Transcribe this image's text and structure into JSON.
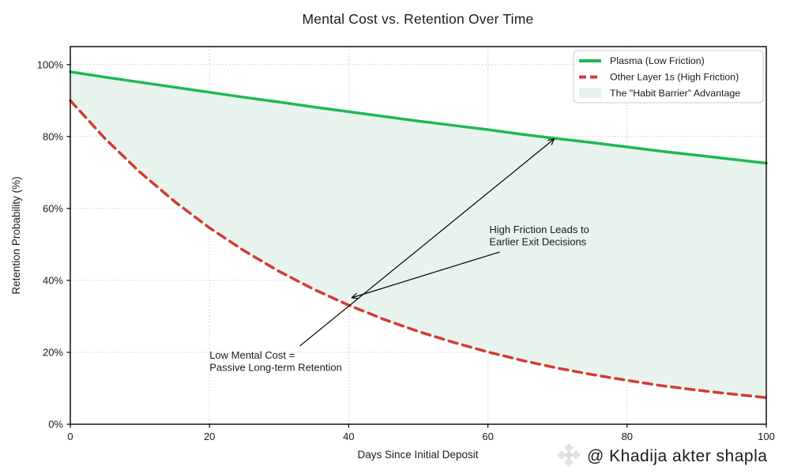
{
  "title": "Mental Cost vs. Retention Over Time",
  "watermark": {
    "icon": "bnb-diamond-icon",
    "text": "@ Khadija akter shapla",
    "color": "#d6d6d6"
  },
  "legend": {
    "position": "upper right",
    "items": [
      {
        "label": "Plasma (Low Friction)",
        "swatch": "solid-line",
        "color": "#1db954"
      },
      {
        "label": "Other Layer 1s (High Friction)",
        "swatch": "dashed-line",
        "color": "#d23b34"
      },
      {
        "label": "The \"Habit Barrier\" Advantage",
        "swatch": "patch",
        "color": "#e9f3ed"
      }
    ]
  },
  "chart_data": {
    "type": "line",
    "title": "Mental Cost vs. Retention Over Time",
    "xlabel": "Days Since Initial Deposit",
    "ylabel": "Retention Probability (%)",
    "xlim": [
      0,
      100
    ],
    "ylim": [
      0,
      105
    ],
    "x_ticks": [
      0,
      20,
      40,
      60,
      80,
      100
    ],
    "x_tick_labels": [
      "0",
      "20",
      "40",
      "60",
      "80",
      "100"
    ],
    "y_ticks": [
      0,
      20,
      40,
      60,
      80,
      100
    ],
    "y_tick_labels": [
      "0%",
      "20%",
      "40%",
      "60%",
      "80%",
      "100%"
    ],
    "grid": true,
    "grid_style": "dotted",
    "legend_position": "upper right",
    "x": [
      0,
      5,
      10,
      15,
      20,
      25,
      30,
      35,
      40,
      45,
      50,
      55,
      60,
      65,
      70,
      75,
      80,
      85,
      90,
      95,
      100
    ],
    "series": [
      {
        "name": "Plasma (Low Friction)",
        "color": "#1db954",
        "style": "solid",
        "line_width": 3.5,
        "values": [
          98.0,
          96.5,
          95.1,
          93.7,
          92.3,
          90.9,
          89.6,
          88.2,
          86.9,
          85.6,
          84.3,
          83.1,
          81.9,
          80.6,
          79.4,
          78.3,
          77.1,
          75.9,
          74.8,
          73.7,
          72.6
        ]
      },
      {
        "name": "Other Layer 1s (High Friction)",
        "color": "#d23b34",
        "style": "dashed",
        "line_width": 3.5,
        "values": [
          90.0,
          79.4,
          70.1,
          61.9,
          54.6,
          48.2,
          42.5,
          37.5,
          33.1,
          29.2,
          25.8,
          22.8,
          20.1,
          17.7,
          15.6,
          13.8,
          12.2,
          10.7,
          9.5,
          8.4,
          7.4
        ]
      }
    ],
    "fill_between": {
      "name": "The \"Habit Barrier\" Advantage",
      "color": "#e9f3ed",
      "upper": "Plasma (Low Friction)",
      "lower": "Other Layer 1s (High Friction)"
    },
    "annotations": [
      {
        "lines": [
          "High Friction Leads to",
          "Earlier Exit Decisions"
        ],
        "text_at": [
          60.2,
          55.6
        ],
        "arrow_from": [
          61.7,
          47.9
        ],
        "arrow_to": [
          40.5,
          35.2
        ]
      },
      {
        "lines": [
          "Low Mental Cost =",
          "Passive Long-term Retention"
        ],
        "text_at": [
          20.0,
          20.7
        ],
        "arrow_from": [
          33.0,
          21.8
        ],
        "arrow_to": [
          69.5,
          79.3
        ]
      }
    ]
  }
}
